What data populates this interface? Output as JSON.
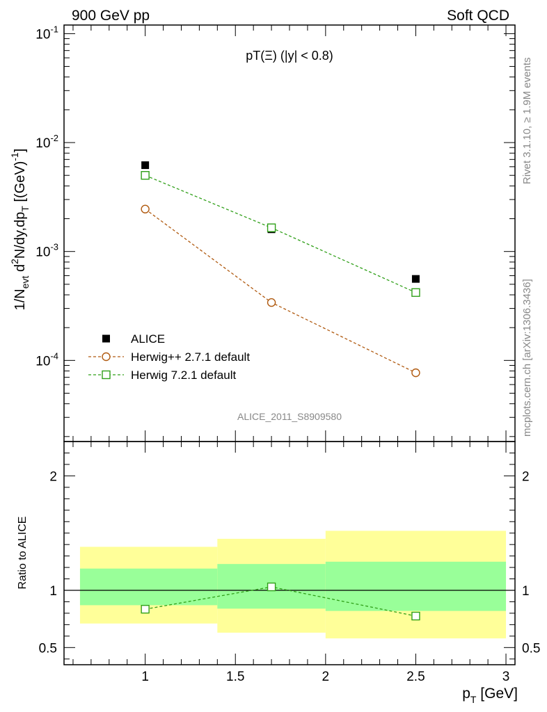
{
  "header": {
    "left_label": "900 GeV pp",
    "right_label": "Soft QCD"
  },
  "side_labels": {
    "rivet": "Rivet 3.1.10, ≥ 1.9M events",
    "mcplots": "mcplots.cern.ch [arXiv:1306.3436]"
  },
  "analysis_id": "ALICE_2011_S8909580",
  "chart_data": [
    {
      "type": "scatter",
      "panel": "main",
      "title": "pT(Ξ) (|y| < 0.8)",
      "ylabel": "1/Nevt d²N/dy,dpT [(GeV)⁻¹]",
      "xlabel": "pT [GeV]",
      "x_scale": "linear",
      "y_scale": "log",
      "xlim": [
        0.55,
        3.05
      ],
      "ylim": [
        1.8e-05,
        0.12
      ],
      "y_ticks": [
        "10^-4",
        "10^-3",
        "10^-2",
        "10^-1"
      ],
      "legend_position": "bottom-left",
      "series": [
        {
          "name": "ALICE",
          "marker": "filled-square",
          "color": "#000000",
          "x": [
            1.0,
            1.7,
            2.5
          ],
          "y": [
            0.0062,
            0.0016,
            0.00056
          ],
          "bins": [
            [
              0.6,
              1.4
            ],
            [
              1.4,
              2.0
            ],
            [
              2.0,
              3.0
            ]
          ]
        },
        {
          "name": "Herwig++ 2.7.1 default",
          "marker": "open-circle",
          "line": "dashed",
          "color": "#b05a10",
          "x": [
            1.0,
            1.7,
            2.5
          ],
          "y": [
            0.00245,
            0.00034,
            7.7e-05
          ]
        },
        {
          "name": "Herwig 7.2.1 default",
          "marker": "open-square",
          "line": "dashed",
          "color": "#2f9f18",
          "x": [
            1.0,
            1.7,
            2.5
          ],
          "y": [
            0.005,
            0.00165,
            0.00042
          ]
        }
      ]
    },
    {
      "type": "scatter",
      "panel": "ratio",
      "ylabel": "Ratio to ALICE",
      "xlabel": "pT [GeV]",
      "xlim": [
        0.55,
        3.05
      ],
      "ylim": [
        0.35,
        2.3
      ],
      "x_ticks": [
        "1",
        "1.5",
        "2",
        "2.5",
        "3"
      ],
      "y_ticks": [
        "0.5",
        "1",
        "2"
      ],
      "reference_line": 1,
      "bands": [
        {
          "x0": 0.6,
          "x1": 1.4,
          "stat_lo": 0.87,
          "stat_hi": 1.19,
          "tot_lo": 0.71,
          "tot_hi": 1.38
        },
        {
          "x0": 1.4,
          "x1": 2.0,
          "stat_lo": 0.84,
          "stat_hi": 1.23,
          "tot_lo": 0.63,
          "tot_hi": 1.45
        },
        {
          "x0": 2.0,
          "x1": 3.0,
          "stat_lo": 0.82,
          "stat_hi": 1.25,
          "tot_lo": 0.58,
          "tot_hi": 1.52
        }
      ],
      "band_colors": {
        "stat": "#99ff99",
        "total": "#ffff99"
      },
      "series": [
        {
          "name": "Herwig 7.2.1 default",
          "marker": "open-square",
          "line": "dashed",
          "color": "#2f9f18",
          "x": [
            1.0,
            1.7,
            2.5
          ],
          "y": [
            0.835,
            1.03,
            0.775
          ]
        }
      ]
    }
  ]
}
